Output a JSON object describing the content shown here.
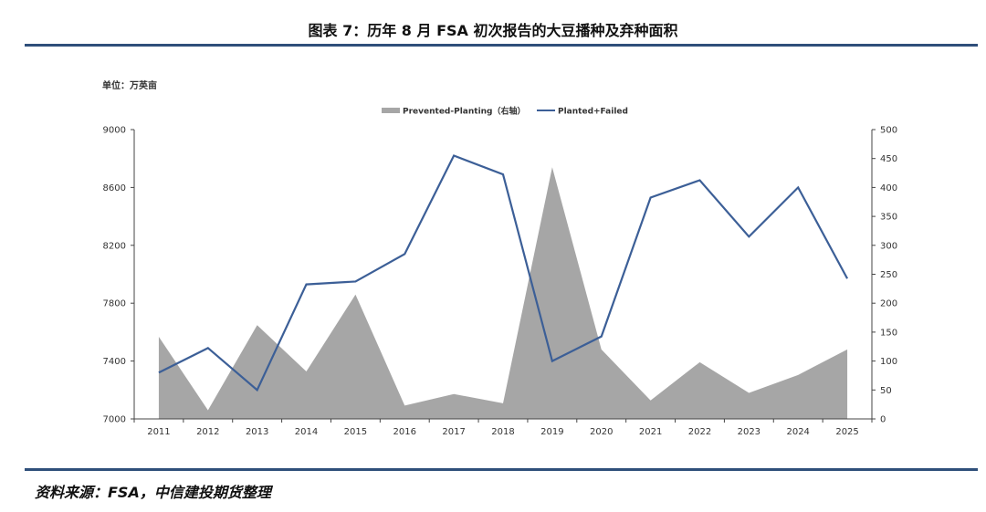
{
  "title": "图表 7：历年 8 月 FSA 初次报告的大豆播种及弃种面积",
  "source": "资料来源：FSA，中信建投期货整理",
  "unit_label": "单位：万英亩",
  "chart_data": {
    "type": "line",
    "categories": [
      "2011",
      "2012",
      "2013",
      "2014",
      "2015",
      "2016",
      "2017",
      "2018",
      "2019",
      "2020",
      "2021",
      "2022",
      "2023",
      "2024",
      "2025"
    ],
    "series": [
      {
        "name": "Prevented-Planting（右轴）",
        "type": "area",
        "axis": "right",
        "color": "#a6a6a6",
        "values": [
          142,
          15,
          162,
          82,
          215,
          23,
          43,
          27,
          435,
          120,
          32,
          98,
          45,
          76,
          120
        ]
      },
      {
        "name": "Planted+Failed",
        "type": "line",
        "axis": "left",
        "color": "#3c5f97",
        "values": [
          7320,
          7490,
          7200,
          7930,
          7950,
          8140,
          8820,
          8690,
          7400,
          7570,
          8530,
          8650,
          8260,
          8600,
          7970
        ]
      }
    ],
    "y_left": {
      "min": 7000,
      "max": 9000,
      "ticks": [
        7000,
        7400,
        7800,
        8200,
        8600,
        9000
      ]
    },
    "y_right": {
      "min": 0,
      "max": 500,
      "ticks": [
        0,
        50,
        100,
        150,
        200,
        250,
        300,
        350,
        400,
        450,
        500
      ]
    },
    "legend_placement": "top-center",
    "grid": false
  }
}
